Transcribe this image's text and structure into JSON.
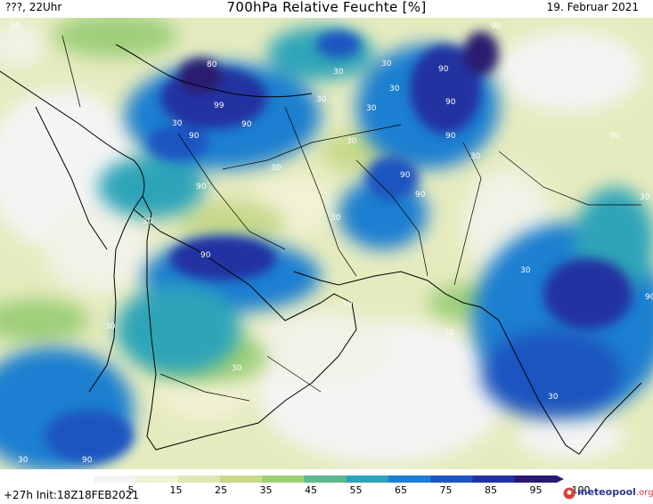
{
  "header": {
    "left": "???, 22Uhr",
    "title": "700hPa Relative Feuchte [%]",
    "right": "19. Februar 2021"
  },
  "footer": {
    "forecast": "+27h Init:18Z18FEB2021"
  },
  "colorbar": {
    "ticks": [
      "5",
      "15",
      "25",
      "35",
      "45",
      "55",
      "65",
      "75",
      "85",
      "95",
      "100"
    ],
    "colors": [
      "#f4f4f4",
      "#f2f2d6",
      "#e0e6b2",
      "#c8d98c",
      "#9fcf7a",
      "#5fb88f",
      "#2fa4b8",
      "#1e7fd0",
      "#1f55c0",
      "#2233a0",
      "#2a1a6e"
    ]
  },
  "logo": {
    "name": "meteopool",
    "suffix": ".org"
  },
  "contour_labels": [
    {
      "text": "30"
    },
    {
      "text": "80"
    },
    {
      "text": "99"
    },
    {
      "text": "90"
    },
    {
      "text": "90"
    },
    {
      "text": "30"
    },
    {
      "text": "90"
    },
    {
      "text": "90"
    },
    {
      "text": "30"
    },
    {
      "text": "90"
    },
    {
      "text": "30"
    },
    {
      "text": "30"
    },
    {
      "text": "30"
    },
    {
      "text": "90"
    },
    {
      "text": "30"
    },
    {
      "text": "30"
    },
    {
      "text": "30"
    },
    {
      "text": "90"
    },
    {
      "text": "30"
    },
    {
      "text": "90"
    },
    {
      "text": "90"
    },
    {
      "text": "30"
    },
    {
      "text": "30"
    },
    {
      "text": "30"
    },
    {
      "text": "30"
    },
    {
      "text": "30"
    },
    {
      "text": "30"
    },
    {
      "text": "90"
    },
    {
      "text": "30"
    },
    {
      "text": "30"
    },
    {
      "text": "30"
    },
    {
      "text": "90"
    },
    {
      "text": "30"
    },
    {
      "text": "90"
    },
    {
      "text": "30"
    }
  ]
}
